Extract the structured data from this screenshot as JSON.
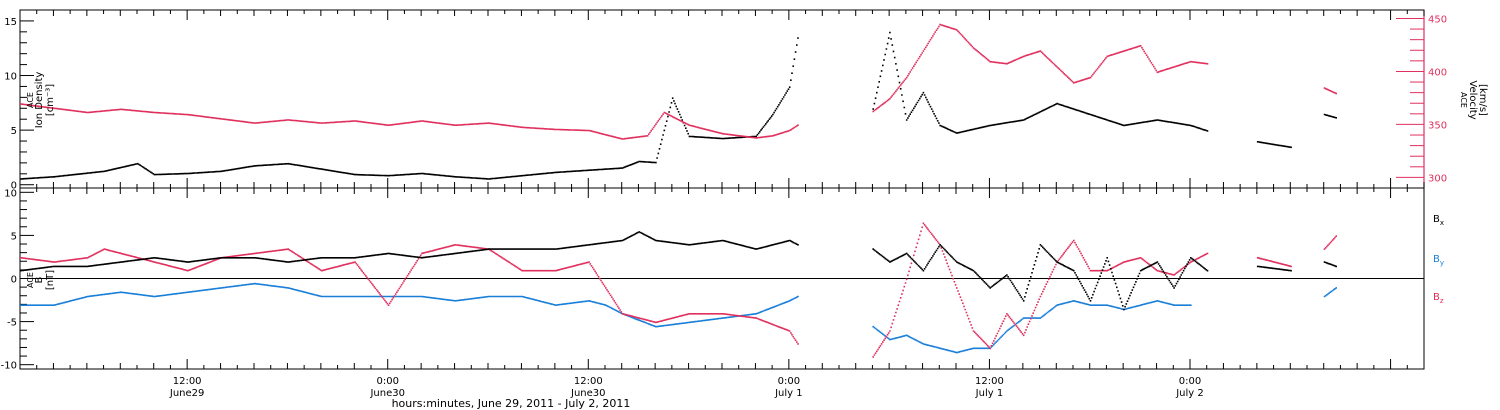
{
  "colors": {
    "black": "#000000",
    "pink": "#e0305e",
    "blue": "#1a7fd8",
    "axis": "#000000"
  },
  "x_axis": {
    "xlabel": "hours:minutes, June 29, 2011 - July  2, 2011",
    "ticks": [
      {
        "x": 12,
        "time": "12:00",
        "date": "June29"
      },
      {
        "x": 24,
        "time": "0:00",
        "date": "June30"
      },
      {
        "x": 36,
        "time": "12:00",
        "date": "June30"
      },
      {
        "x": 48,
        "time": "0:00",
        "date": "July  1"
      },
      {
        "x": 60,
        "time": "12:00",
        "date": "July  1"
      },
      {
        "x": 72,
        "time": "0:00",
        "date": "July  2"
      }
    ]
  },
  "chart_data": [
    {
      "type": "scatter",
      "x_unit": "hours from 00:00 June 29, 2011",
      "xlim": [
        2,
        86
      ],
      "ylim": [
        -0.3,
        16
      ],
      "y2lim": [
        290,
        458
      ],
      "ylabel": [
        "ACE",
        "Ion Density",
        "[cm⁻³]"
      ],
      "y2label": [
        "ACE",
        "Velocity",
        "[km/s]"
      ],
      "yticks": [
        0,
        5,
        10,
        15
      ],
      "y2ticks": [
        300,
        350,
        400,
        450
      ],
      "series": [
        {
          "axis": "left",
          "color_key": "black",
          "segments": [
            {
              "x": [
                2,
                4,
                7,
                9,
                10,
                12,
                14,
                16,
                18,
                20,
                22,
                24,
                26,
                28,
                30,
                32,
                34,
                36,
                38,
                39,
                40,
                41,
                42,
                44,
                46,
                47,
                48,
                48.5
              ],
              "y": [
                0.6,
                0.8,
                1.3,
                2.0,
                1.0,
                1.1,
                1.3,
                1.8,
                2.0,
                1.5,
                1.0,
                0.9,
                1.1,
                0.8,
                0.6,
                0.9,
                1.2,
                1.4,
                1.6,
                2.2,
                2.1,
                8.0,
                4.5,
                4.3,
                4.5,
                6.5,
                9.0,
                13.5
              ]
            },
            {
              "x": [
                53,
                54,
                55,
                56,
                57,
                58,
                60,
                62,
                64,
                66,
                68,
                70,
                72,
                73
              ],
              "y": [
                7.0,
                14.0,
                6.0,
                8.5,
                5.5,
                4.8,
                5.5,
                6.0,
                7.5,
                6.5,
                5.5,
                6.0,
                5.5,
                5.0
              ]
            },
            {
              "x": [
                76,
                78
              ],
              "y": [
                4.0,
                3.5
              ]
            },
            {
              "x": [
                80,
                80.7
              ],
              "y": [
                6.5,
                6.2
              ]
            }
          ]
        },
        {
          "axis": "right",
          "color_key": "pink",
          "segments": [
            {
              "x": [
                2,
                4,
                6,
                8,
                10,
                12,
                14,
                16,
                18,
                20,
                22,
                24,
                26,
                28,
                30,
                32,
                34,
                36,
                38,
                39.5,
                40.5,
                42,
                44,
                46,
                47,
                48,
                48.5
              ],
              "y": [
                370,
                366,
                362,
                365,
                362,
                360,
                356,
                352,
                355,
                352,
                354,
                350,
                354,
                350,
                352,
                348,
                346,
                345,
                337,
                340,
                362,
                350,
                342,
                338,
                340,
                345,
                350
              ]
            },
            {
              "x": [
                53,
                54,
                55,
                56,
                57,
                58,
                59,
                60,
                61,
                62,
                63,
                64,
                65,
                66,
                67,
                68,
                69,
                70,
                71,
                72,
                73
              ],
              "y": [
                363,
                375,
                395,
                420,
                445,
                440,
                423,
                410,
                408,
                415,
                420,
                405,
                390,
                395,
                415,
                420,
                425,
                400,
                405,
                410,
                408
              ]
            },
            {
              "x": [
                80,
                80.7
              ],
              "y": [
                385,
                380
              ]
            }
          ]
        }
      ]
    },
    {
      "type": "scatter",
      "x_unit": "hours from 00:00 June 29, 2011",
      "xlim": [
        2,
        86
      ],
      "ylim": [
        -10.5,
        10.5
      ],
      "ylabel": [
        "ACE",
        "B",
        "[nT]"
      ],
      "yticks": [
        -10,
        -5,
        0,
        5,
        10
      ],
      "zero_line": true,
      "legend": [
        {
          "label": "B",
          "sub": "x",
          "color_key": "black"
        },
        {
          "label": "B",
          "sub": "y",
          "color_key": "blue"
        },
        {
          "label": "B",
          "sub": "z",
          "color_key": "pink"
        }
      ],
      "series": [
        {
          "name": "Bx",
          "color_key": "black",
          "segments": [
            {
              "x": [
                2,
                4,
                6,
                8,
                10,
                12,
                14,
                16,
                18,
                20,
                22,
                24,
                26,
                28,
                30,
                32,
                34,
                36,
                38,
                39,
                40,
                42,
                44,
                46,
                48,
                48.5
              ],
              "y": [
                1.0,
                1.5,
                1.5,
                2.0,
                2.5,
                2.0,
                2.5,
                2.5,
                2.0,
                2.5,
                2.5,
                3.0,
                2.5,
                3.0,
                3.5,
                3.5,
                3.5,
                4.0,
                4.5,
                5.5,
                4.5,
                4.0,
                4.5,
                3.5,
                4.5,
                4.0
              ]
            },
            {
              "x": [
                53,
                54,
                55,
                56,
                57,
                58,
                59,
                60,
                61,
                62,
                63,
                64,
                65,
                66,
                67,
                68,
                69,
                70,
                71,
                72,
                73
              ],
              "y": [
                3.5,
                2.0,
                3.0,
                1.0,
                4.0,
                2.0,
                1.0,
                -1.0,
                0.5,
                -2.5,
                4.0,
                2.0,
                1.0,
                -2.5,
                2.5,
                -3.5,
                1.0,
                2.0,
                -1.0,
                2.5,
                1.0
              ]
            },
            {
              "x": [
                76,
                78
              ],
              "y": [
                1.5,
                1.0
              ]
            },
            {
              "x": [
                80,
                80.7
              ],
              "y": [
                2.0,
                1.5
              ]
            }
          ]
        },
        {
          "name": "By",
          "color_key": "blue",
          "segments": [
            {
              "x": [
                2,
                4,
                6,
                8,
                10,
                12,
                14,
                16,
                18,
                20,
                22,
                24,
                26,
                28,
                30,
                32,
                34,
                36,
                37,
                38,
                40,
                42,
                44,
                46,
                48,
                48.5
              ],
              "y": [
                -3.0,
                -3.0,
                -2.0,
                -1.5,
                -2.0,
                -1.5,
                -1.0,
                -0.5,
                -1.0,
                -2.0,
                -2.0,
                -2.0,
                -2.0,
                -2.5,
                -2.0,
                -2.0,
                -3.0,
                -2.5,
                -3.0,
                -4.0,
                -5.5,
                -5.0,
                -4.5,
                -4.0,
                -2.5,
                -2.0
              ]
            },
            {
              "x": [
                53,
                54,
                55,
                56,
                57,
                58,
                59,
                60,
                61,
                62,
                63,
                64,
                65,
                66,
                67,
                68,
                69,
                70,
                71,
                72
              ],
              "y": [
                -5.5,
                -7.0,
                -6.5,
                -7.5,
                -8.0,
                -8.5,
                -8.0,
                -8.0,
                -6.0,
                -4.5,
                -4.5,
                -3.0,
                -2.5,
                -3.0,
                -3.0,
                -3.5,
                -3.0,
                -2.5,
                -3.0,
                -3.0
              ]
            },
            {
              "x": [
                80,
                80.7
              ],
              "y": [
                -2.0,
                -1.0
              ]
            }
          ]
        },
        {
          "name": "Bz",
          "color_key": "pink",
          "segments": [
            {
              "x": [
                2,
                4,
                6,
                7,
                8,
                10,
                12,
                14,
                16,
                18,
                20,
                22,
                24,
                26,
                28,
                30,
                32,
                34,
                36,
                38,
                40,
                42,
                44,
                46,
                48,
                48.5
              ],
              "y": [
                2.5,
                2.0,
                2.5,
                3.5,
                3.0,
                2.0,
                1.0,
                2.5,
                3.0,
                3.5,
                1.0,
                2.0,
                -3.0,
                3.0,
                4.0,
                3.5,
                1.0,
                1.0,
                2.0,
                -4.0,
                -5.0,
                -4.0,
                -4.0,
                -4.5,
                -6.0,
                -7.5
              ]
            },
            {
              "x": [
                53,
                54,
                55,
                56,
                57,
                58,
                59,
                60,
                61,
                62,
                63,
                64,
                65,
                66,
                67,
                68,
                69,
                70,
                71,
                72,
                73
              ],
              "y": [
                -9.0,
                -6.0,
                0.0,
                6.5,
                4.0,
                -1.0,
                -6.0,
                -8.0,
                -4.0,
                -6.5,
                -2.0,
                2.0,
                4.5,
                1.0,
                1.0,
                2.0,
                2.5,
                1.0,
                0.5,
                2.0,
                3.0
              ]
            },
            {
              "x": [
                76,
                78
              ],
              "y": [
                2.5,
                1.5
              ]
            },
            {
              "x": [
                80,
                80.7
              ],
              "y": [
                3.5,
                5.0
              ]
            }
          ]
        }
      ]
    }
  ]
}
